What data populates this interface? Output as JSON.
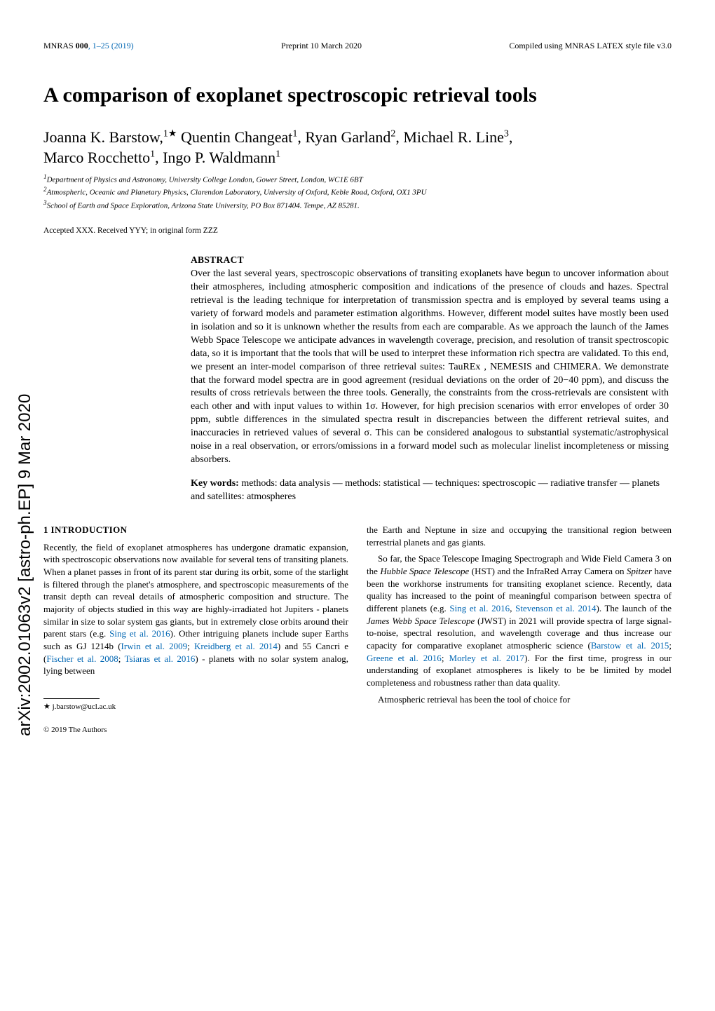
{
  "arxiv_tag": "arXiv:2002.01063v2  [astro-ph.EP]  9 Mar 2020",
  "header": {
    "left_pre": "MNRAS ",
    "left_vol": "000",
    "left_pages": ", 1–25 (2019)",
    "center": "Preprint 10 March 2020",
    "right": "Compiled using MNRAS LATEX style file v3.0"
  },
  "title": "A comparison of exoplanet spectroscopic retrieval tools",
  "authors_html": "Joanna K. Barstow,<sup>1★</sup> Quentin Changeat<sup>1</sup>, Ryan Garland<sup>2</sup>, Michael R. Line<sup>3</sup>, Marco Rocchetto<sup>1</sup>, Ingo P. Waldmann<sup>1</sup>",
  "affils": {
    "a1": "Department of Physics and Astronomy, University College London, Gower Street, London, WC1E 6BT",
    "a2": "Atmospheric, Oceanic and Planetary Physics, Clarendon Laboratory, University of Oxford, Keble Road, Oxford, OX1 3PU",
    "a3": "School of Earth and Space Exploration, Arizona State University, PO Box 871404. Tempe, AZ 85281."
  },
  "accepted": "Accepted XXX. Received YYY; in original form ZZZ",
  "abstract_head": "ABSTRACT",
  "abstract_body": "Over the last several years, spectroscopic observations of transiting exoplanets have begun to uncover information about their atmospheres, including atmospheric composition and indications of the presence of clouds and hazes. Spectral retrieval is the leading technique for interpretation of transmission spectra and is employed by several teams using a variety of forward models and parameter estimation algorithms. However, different model suites have mostly been used in isolation and so it is unknown whether the results from each are comparable. As we approach the launch of the James Webb Space Telescope we anticipate advances in wavelength coverage, precision, and resolution of transit spectroscopic data, so it is important that the tools that will be used to interpret these information rich spectra are validated. To this end, we present an inter-model comparison of three retrieval suites: TauREx , NEMESIS and CHIMERA. We demonstrate that the forward model spectra are in good agreement (residual deviations on the order of 20−40 ppm), and discuss the results of cross retrievals between the three tools. Generally, the constraints from the cross-retrievals are consistent with each other and with input values to within 1σ. However, for high precision scenarios with error envelopes of order 30 ppm, subtle differences in the simulated spectra result in discrepancies between the different retrieval suites, and inaccuracies in retrieved values of several σ. This can be considered analogous to substantial systematic/astrophysical noise in a real observation, or errors/omissions in a forward model such as molecular linelist incompleteness or missing absorbers.",
  "keywords_label": "Key words:",
  "keywords_body": " methods: data analysis — methods: statistical — techniques: spectroscopic — radiative transfer — planets and satellites: atmospheres",
  "section_head": "1   INTRODUCTION",
  "col1_p1a": "Recently, the field of exoplanet atmospheres has undergone dramatic expansion, with spectroscopic observations now available for several tens of transiting planets. When a planet passes in front of its parent star during its orbit, some of the starlight is filtered through the planet's atmosphere, and spectroscopic measurements of the transit depth can reveal details of atmospheric composition and structure. The majority of objects studied in this way are highly-irradiated hot Jupiters - planets similar in size to solar system gas giants, but in extremely close orbits around their parent stars (e.g. ",
  "link_sing": "Sing et al. 2016",
  "col1_p1b": "). Other intriguing planets include super Earths such as GJ 1214b (",
  "link_irwin": "Irwin et al. 2009",
  "sep_semi": "; ",
  "link_kreid": "Kreidberg et al. 2014",
  "col1_p1c": ") and 55 Cancri e (",
  "link_fischer": "Fischer et al. 2008",
  "link_tsiaras": "Tsiaras et al. 2016",
  "col1_p1d": ") - planets with no solar system analog, lying between",
  "col2_p1": "the Earth and Neptune in size and occupying the transitional region between terrestrial planets and gas giants.",
  "col2_p2a": "So far, the Space Telescope Imaging Spectrograph and Wide Field Camera 3 on the ",
  "hst_ital": "Hubble Space Telescope",
  "hst_abbr": " (HST) and the InfraRed Array Camera on ",
  "spitzer_ital": "Spitzer",
  "col2_p2b": " have been the workhorse instruments for transiting exoplanet science. Recently, data quality has increased to the point of meaningful comparison between spectra of different planets (e.g. ",
  "link_sing2": "Sing et al. 2016",
  "col2_p2c": ", ",
  "link_stevenson": "Stevenson et al. 2014",
  "col2_p2d": "). The launch of the ",
  "jwst_ital": "James Webb Space Telescope",
  "jwst_abbr": " (JWST) in 2021 will provide spectra of large signal-to-noise, spectral resolution, and wavelength coverage and thus increase our capacity for comparative exoplanet atmospheric science (",
  "link_barstow": "Barstow et al. 2015",
  "link_greene": "Greene et al. 2016",
  "link_morley": "Morley et al. 2017",
  "col2_p2e": "). For the first time, progress in our understanding of exoplanet atmospheres is likely to be be limited by model completeness and robustness rather than data quality.",
  "col2_p3": "Atmospheric retrieval has been the tool of choice for",
  "footnote_star": "★",
  "footnote_email": " j.barstow@ucl.ac.uk",
  "copyright": "© 2019 The Authors",
  "colors": {
    "link": "#0066b3",
    "text": "#000000",
    "background": "#ffffff"
  }
}
